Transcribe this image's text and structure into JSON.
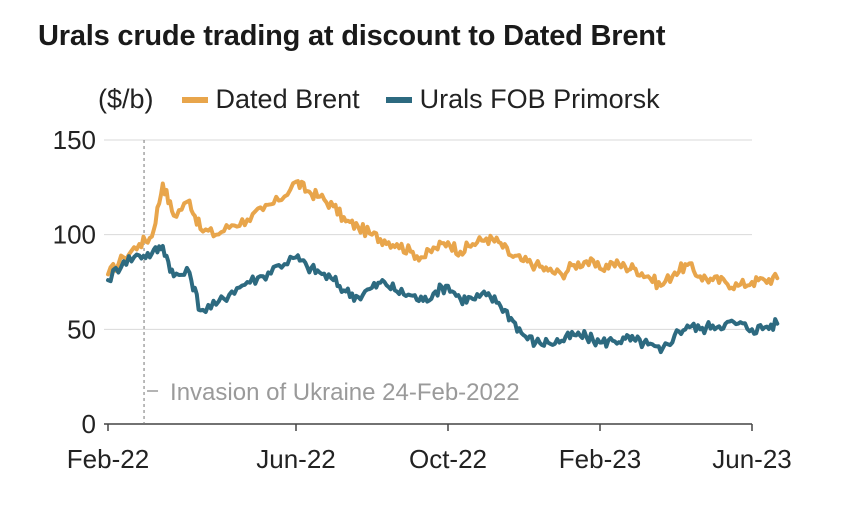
{
  "chart_data": {
    "type": "line",
    "title": "Urals crude trading at discount to Dated Brent",
    "ylabel": "($/b)",
    "xlabel": "",
    "ylim": [
      0,
      150
    ],
    "yticks": [
      0,
      50,
      100,
      150
    ],
    "xticks": [
      "Feb-22",
      "Jun-22",
      "Oct-22",
      "Feb-23",
      "Jun-23"
    ],
    "grid": true,
    "legend": "top",
    "x": [
      "2022-02-01",
      "2022-02-11",
      "2022-02-21",
      "2022-03-01",
      "2022-03-08",
      "2022-03-15",
      "2022-03-25",
      "2022-04-01",
      "2022-04-11",
      "2022-04-21",
      "2022-05-01",
      "2022-05-11",
      "2022-05-21",
      "2022-06-01",
      "2022-06-10",
      "2022-06-20",
      "2022-07-01",
      "2022-07-11",
      "2022-07-21",
      "2022-08-01",
      "2022-08-11",
      "2022-08-21",
      "2022-09-01",
      "2022-09-11",
      "2022-09-21",
      "2022-10-01",
      "2022-10-11",
      "2022-10-21",
      "2022-11-01",
      "2022-11-11",
      "2022-11-21",
      "2022-12-01",
      "2022-12-11",
      "2022-12-21",
      "2023-01-01",
      "2023-01-11",
      "2023-01-21",
      "2023-02-01",
      "2023-02-11",
      "2023-02-21",
      "2023-03-01",
      "2023-03-11",
      "2023-03-21",
      "2023-04-01",
      "2023-04-11",
      "2023-04-21",
      "2023-05-01",
      "2023-05-11",
      "2023-05-21",
      "2023-06-01",
      "2023-06-11",
      "2023-06-21"
    ],
    "series": [
      {
        "name": "Dated Brent",
        "color": "#e8a54b",
        "values": [
          79,
          88,
          95,
          99,
          127,
          110,
          118,
          103,
          100,
          105,
          108,
          113,
          118,
          128,
          123,
          120,
          115,
          107,
          104,
          100,
          97,
          95,
          91,
          88,
          93,
          96,
          91,
          95,
          98,
          96,
          89,
          86,
          84,
          81,
          79,
          84,
          86,
          82,
          85,
          83,
          82,
          78,
          73,
          80,
          84,
          78,
          76,
          75,
          73,
          75,
          76,
          77
        ]
      },
      {
        "name": "Urals FOB Primorsk",
        "color": "#2d6a80",
        "values": [
          76,
          86,
          89,
          90,
          94,
          78,
          80,
          60,
          63,
          70,
          75,
          78,
          84,
          88,
          83,
          80,
          76,
          70,
          67,
          72,
          75,
          70,
          68,
          65,
          70,
          73,
          66,
          66,
          68,
          64,
          56,
          47,
          43,
          43,
          44,
          47,
          46,
          43,
          44,
          45,
          44,
          42,
          38,
          47,
          52,
          50,
          52,
          53,
          53,
          50,
          51,
          53
        ]
      }
    ],
    "annotations": [
      {
        "text": "Invasion of Ukraine 24-Feb-2022",
        "x": "2022-02-24"
      }
    ],
    "colors": {
      "brent": "#e8a54b",
      "urals": "#2d6a80",
      "grid": "#d9d9d9",
      "annotation": "#9a9a9a"
    }
  }
}
